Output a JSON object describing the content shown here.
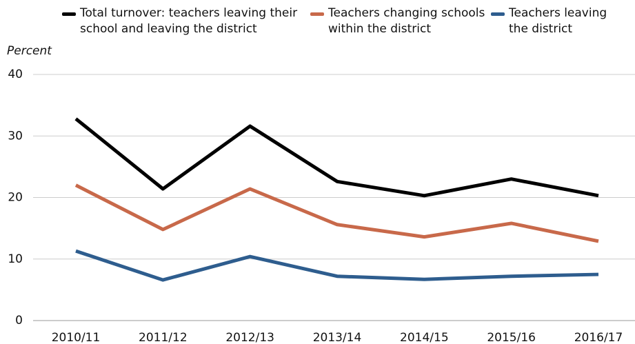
{
  "chart_data": {
    "type": "line",
    "y_label": "Percent",
    "categories": [
      "2010/11",
      "2011/12",
      "2012/13",
      "2013/14",
      "2014/15",
      "2015/16",
      "2016/17"
    ],
    "series": [
      {
        "name": "Total turnover: teachers leaving their school and leaving the district",
        "color": "#000000",
        "values": [
          32.8,
          21.4,
          31.6,
          22.6,
          20.3,
          23.0,
          20.3
        ]
      },
      {
        "name": "Teachers changing schools within the district",
        "color": "#c8694a",
        "values": [
          22.0,
          14.8,
          21.4,
          15.6,
          13.6,
          15.8,
          12.9
        ]
      },
      {
        "name": "Teachers leaving the district",
        "color": "#2e5d8e",
        "values": [
          11.3,
          6.6,
          10.4,
          7.2,
          6.7,
          7.2,
          7.5
        ]
      }
    ],
    "ylim": [
      0,
      40
    ],
    "yticks": [
      0,
      10,
      20,
      30,
      40
    ],
    "grid": true,
    "legend": "top"
  }
}
